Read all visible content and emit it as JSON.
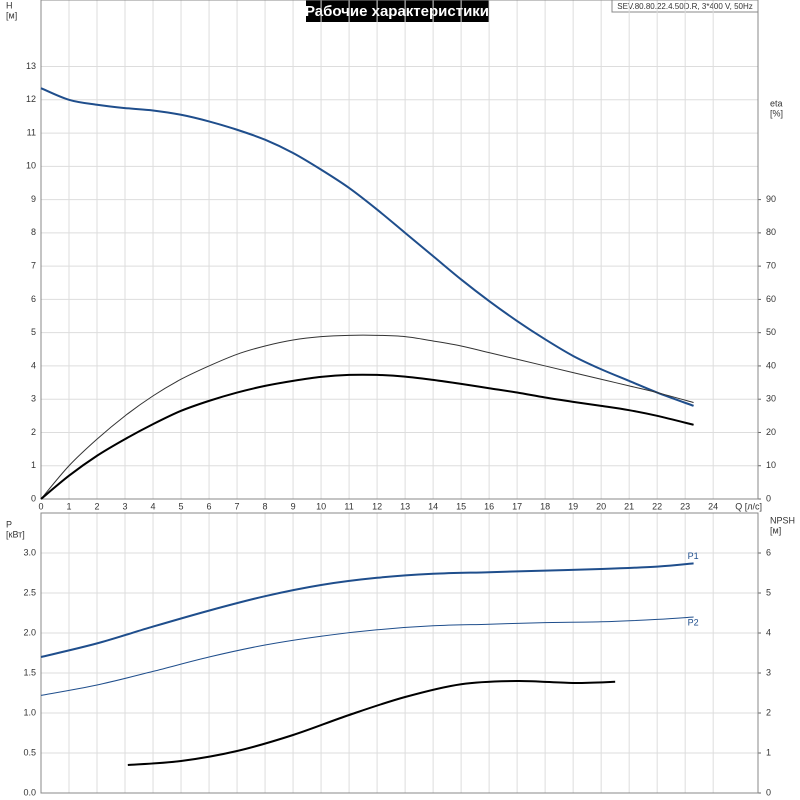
{
  "chart_data": [
    {
      "type": "line",
      "title": "Рабочие характеристики",
      "subtitle": "SEV.80.80.22.4.50D.R, 3*400 V, 50Hz",
      "ylabel": [
        "H",
        "[м]"
      ],
      "y2label": [
        "eta",
        "[%]"
      ],
      "xlabel": "Q [л/с]",
      "xlim": [
        0,
        25.6
      ],
      "xticks": [
        0,
        1,
        2,
        3,
        4,
        5,
        6,
        7,
        8,
        9,
        10,
        11,
        12,
        13,
        14,
        15,
        16,
        17,
        18,
        19,
        20,
        21,
        22,
        23,
        24
      ],
      "ylim": [
        0,
        15
      ],
      "yticks": [
        0,
        1,
        2,
        3,
        4,
        5,
        6,
        7,
        8,
        9,
        10,
        11,
        12,
        13
      ],
      "y2lim": [
        0,
        150
      ],
      "y2ticks": [
        0,
        10,
        20,
        30,
        40,
        50,
        60,
        70,
        80,
        90
      ],
      "grid": true,
      "series": [
        {
          "color": "#1f4e8c",
          "width": 2,
          "x": [
            0,
            1,
            2,
            3,
            4,
            5,
            6,
            7,
            8,
            9,
            10,
            11,
            12,
            13,
            14,
            15,
            16,
            17,
            18,
            19,
            20,
            21,
            22,
            23.3
          ],
          "values": [
            12.35,
            12.0,
            11.85,
            11.75,
            11.68,
            11.55,
            11.35,
            11.1,
            10.8,
            10.4,
            9.9,
            9.35,
            8.7,
            8.0,
            7.3,
            6.6,
            5.95,
            5.35,
            4.8,
            4.3,
            3.9,
            3.55,
            3.2,
            2.8
          ]
        },
        {
          "color": "#333333",
          "width": 1,
          "axis": "y2",
          "x": [
            0,
            1,
            2,
            3,
            4,
            5,
            6,
            7,
            8,
            9,
            10,
            11,
            12,
            13,
            14,
            15,
            16,
            17,
            18,
            19,
            20,
            21,
            22,
            23.3
          ],
          "values": [
            0,
            10,
            18,
            25,
            31,
            36,
            40,
            43.5,
            46,
            47.8,
            48.8,
            49.2,
            49.2,
            48.8,
            47.5,
            46,
            44,
            42,
            40,
            38,
            36,
            34,
            32,
            29
          ]
        },
        {
          "color": "#000000",
          "width": 2,
          "axis": "y2",
          "x": [
            0,
            1,
            2,
            3,
            4,
            5,
            6,
            7,
            8,
            9,
            10,
            11,
            12,
            13,
            14,
            15,
            16,
            17,
            18,
            19,
            20,
            21,
            22,
            23.3
          ],
          "values": [
            0,
            7,
            13,
            18,
            22.5,
            26.5,
            29.5,
            32,
            34,
            35.5,
            36.7,
            37.3,
            37.3,
            36.8,
            35.8,
            34.6,
            33.3,
            32,
            30.5,
            29.2,
            28,
            26.7,
            25,
            22.3
          ]
        }
      ]
    },
    {
      "type": "line",
      "ylabel": [
        "P",
        "[кВт]"
      ],
      "y2label": [
        "NPSH",
        "[м]"
      ],
      "xlim": [
        0,
        25.6
      ],
      "ylim": [
        0,
        3.5
      ],
      "yticks": [
        {
          "value": 0,
          "label": "0.0"
        },
        {
          "value": 0.5,
          "label": "0.5"
        },
        {
          "value": 1,
          "label": "1.0"
        },
        {
          "value": 1.5,
          "label": "1.5"
        },
        {
          "value": 2,
          "label": "2.0"
        },
        {
          "value": 2.5,
          "label": "2.5"
        },
        {
          "value": 3,
          "label": "3.0"
        }
      ],
      "y2lim": [
        0,
        7
      ],
      "y2ticks": [
        0,
        1,
        2,
        3,
        4,
        5,
        6
      ],
      "grid": true,
      "series": [
        {
          "name": "P1",
          "color": "#1f4e8c",
          "width": 2,
          "x": [
            0,
            2,
            4,
            6,
            8,
            10,
            12,
            14,
            16,
            18,
            20,
            22,
            23.3
          ],
          "values": [
            1.7,
            1.87,
            2.08,
            2.28,
            2.46,
            2.6,
            2.69,
            2.74,
            2.76,
            2.78,
            2.8,
            2.83,
            2.87
          ]
        },
        {
          "name": "P2",
          "color": "#1f4e8c",
          "width": 1,
          "x": [
            0,
            2,
            4,
            6,
            8,
            10,
            12,
            14,
            16,
            18,
            20,
            22,
            23.3
          ],
          "values": [
            1.22,
            1.35,
            1.52,
            1.7,
            1.85,
            1.96,
            2.04,
            2.09,
            2.11,
            2.13,
            2.14,
            2.17,
            2.2
          ]
        },
        {
          "color": "#000000",
          "width": 2,
          "axis": "y2",
          "x": [
            3.1,
            5,
            7,
            9,
            11,
            13,
            15,
            17,
            19,
            20.5
          ],
          "values": [
            0.7,
            0.8,
            1.05,
            1.45,
            1.95,
            2.4,
            2.72,
            2.8,
            2.75,
            2.78
          ]
        }
      ]
    }
  ]
}
